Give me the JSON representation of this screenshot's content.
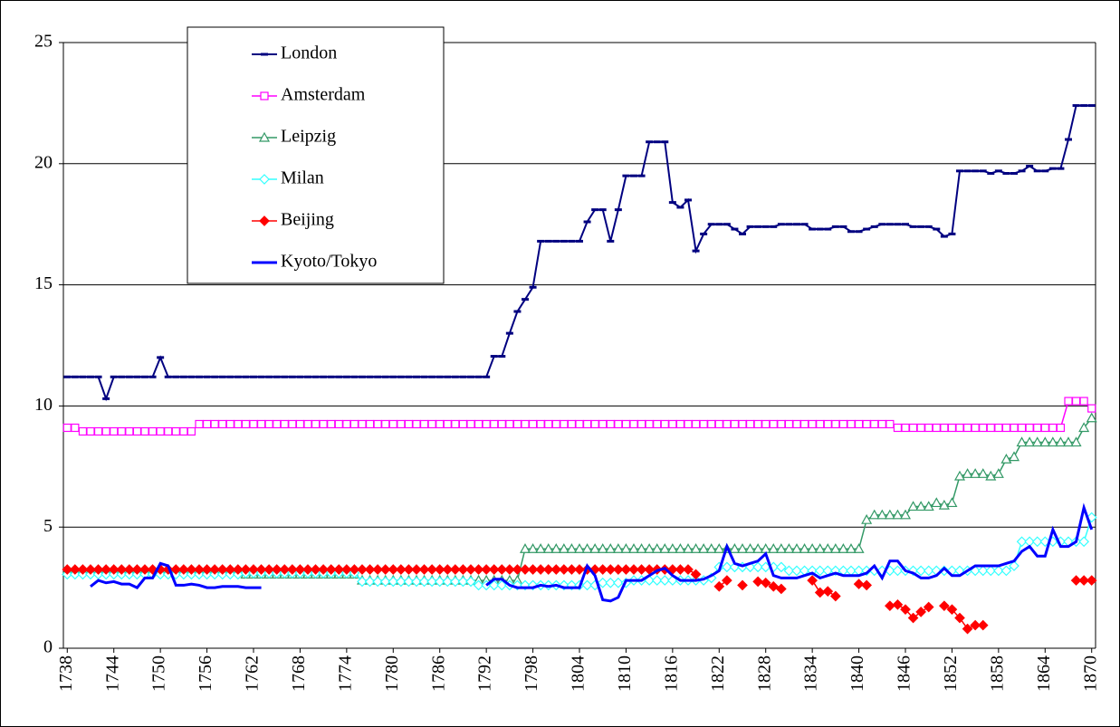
{
  "chart_data": {
    "type": "line",
    "x": [
      1738,
      1739,
      1740,
      1741,
      1742,
      1743,
      1744,
      1745,
      1746,
      1747,
      1748,
      1749,
      1750,
      1751,
      1752,
      1753,
      1754,
      1755,
      1756,
      1757,
      1758,
      1759,
      1760,
      1761,
      1762,
      1763,
      1764,
      1765,
      1766,
      1767,
      1768,
      1769,
      1770,
      1771,
      1772,
      1773,
      1774,
      1775,
      1776,
      1777,
      1778,
      1779,
      1780,
      1781,
      1782,
      1783,
      1784,
      1785,
      1786,
      1787,
      1788,
      1789,
      1790,
      1791,
      1792,
      1793,
      1794,
      1795,
      1796,
      1797,
      1798,
      1799,
      1800,
      1801,
      1802,
      1803,
      1804,
      1805,
      1806,
      1807,
      1808,
      1809,
      1810,
      1811,
      1812,
      1813,
      1814,
      1815,
      1816,
      1817,
      1818,
      1819,
      1820,
      1821,
      1822,
      1823,
      1824,
      1825,
      1826,
      1827,
      1828,
      1829,
      1830,
      1831,
      1832,
      1833,
      1834,
      1835,
      1836,
      1837,
      1838,
      1839,
      1840,
      1841,
      1842,
      1843,
      1844,
      1845,
      1846,
      1847,
      1848,
      1849,
      1850,
      1851,
      1852,
      1853,
      1854,
      1855,
      1856,
      1857,
      1858,
      1859,
      1860,
      1861,
      1862,
      1863,
      1864,
      1865,
      1866,
      1867,
      1868,
      1869,
      1870
    ],
    "xlim": [
      1737.5,
      1870.5
    ],
    "xticks": [
      1738,
      1744,
      1750,
      1756,
      1762,
      1768,
      1774,
      1780,
      1786,
      1792,
      1798,
      1804,
      1810,
      1816,
      1822,
      1828,
      1834,
      1840,
      1846,
      1852,
      1858,
      1864,
      1870
    ],
    "ylim": [
      0,
      25
    ],
    "yticks": [
      0,
      5,
      10,
      15,
      20,
      25
    ],
    "grid": true,
    "legend": "upper left",
    "series": [
      {
        "name": "London",
        "color": "#000080",
        "marker": "dash",
        "width": 2,
        "values": [
          11.2,
          11.2,
          11.2,
          11.2,
          11.2,
          10.3,
          11.2,
          11.2,
          11.2,
          11.2,
          11.2,
          11.2,
          12.0,
          11.2,
          11.2,
          11.2,
          11.2,
          11.2,
          11.2,
          11.2,
          11.2,
          11.2,
          11.2,
          11.2,
          11.2,
          11.2,
          11.2,
          11.2,
          11.2,
          11.2,
          11.2,
          11.2,
          11.2,
          11.2,
          11.2,
          11.2,
          11.2,
          11.2,
          11.2,
          11.2,
          11.2,
          11.2,
          11.2,
          11.2,
          11.2,
          11.2,
          11.2,
          11.2,
          11.2,
          11.2,
          11.2,
          11.2,
          11.2,
          11.2,
          11.2,
          12.05,
          12.05,
          13.0,
          13.9,
          14.4,
          14.9,
          16.8,
          16.8,
          16.8,
          16.8,
          16.8,
          16.8,
          17.6,
          18.1,
          18.1,
          16.8,
          18.1,
          19.5,
          19.5,
          19.5,
          20.9,
          20.9,
          20.9,
          18.4,
          18.2,
          18.5,
          16.4,
          17.1,
          17.5,
          17.5,
          17.5,
          17.3,
          17.1,
          17.4,
          17.4,
          17.4,
          17.4,
          17.5,
          17.5,
          17.5,
          17.5,
          17.3,
          17.3,
          17.3,
          17.4,
          17.4,
          17.2,
          17.2,
          17.3,
          17.4,
          17.5,
          17.5,
          17.5,
          17.5,
          17.4,
          17.4,
          17.4,
          17.3,
          17.0,
          17.1,
          19.7,
          19.7,
          19.7,
          19.7,
          19.6,
          19.7,
          19.6,
          19.6,
          19.7,
          19.9,
          19.7,
          19.7,
          19.8,
          19.8,
          21.0,
          22.4,
          22.4,
          22.4
        ]
      },
      {
        "name": "Amsterdam",
        "color": "#ff00ff",
        "marker": "square",
        "width": 1.5,
        "values": [
          9.1,
          9.1,
          8.95,
          8.95,
          8.95,
          8.95,
          8.95,
          8.95,
          8.95,
          8.95,
          8.95,
          8.95,
          8.95,
          8.95,
          8.95,
          8.95,
          8.95,
          9.25,
          9.25,
          9.25,
          9.25,
          9.25,
          9.25,
          9.25,
          9.25,
          9.25,
          9.25,
          9.25,
          9.25,
          9.25,
          9.25,
          9.25,
          9.25,
          9.25,
          9.25,
          9.25,
          9.25,
          9.25,
          9.25,
          9.25,
          9.25,
          9.25,
          9.25,
          9.25,
          9.25,
          9.25,
          9.25,
          9.25,
          9.25,
          9.25,
          9.25,
          9.25,
          9.25,
          9.25,
          9.25,
          9.25,
          9.25,
          9.25,
          9.25,
          9.25,
          9.25,
          9.25,
          9.25,
          9.25,
          9.25,
          9.25,
          9.25,
          9.25,
          9.25,
          9.25,
          9.25,
          9.25,
          9.25,
          9.25,
          9.25,
          9.25,
          9.25,
          9.25,
          9.25,
          9.25,
          9.25,
          9.25,
          9.25,
          9.25,
          9.25,
          9.25,
          9.25,
          9.25,
          9.25,
          9.25,
          9.25,
          9.25,
          9.25,
          9.25,
          9.25,
          9.25,
          9.25,
          9.25,
          9.25,
          9.25,
          9.25,
          9.25,
          9.25,
          9.25,
          9.25,
          9.25,
          9.25,
          9.1,
          9.1,
          9.1,
          9.1,
          9.1,
          9.1,
          9.1,
          9.1,
          9.1,
          9.1,
          9.1,
          9.1,
          9.1,
          9.1,
          9.1,
          9.1,
          9.1,
          9.1,
          9.1,
          9.1,
          9.1,
          9.1,
          10.2,
          10.2,
          10.2,
          9.9
        ]
      },
      {
        "name": "Leipzig",
        "color": "#339966",
        "marker": "triangle",
        "width": 1.5,
        "values": [
          3.2,
          3.2,
          3.2,
          3.2,
          3.2,
          3.2,
          3.2,
          3.2,
          3.2,
          3.2,
          3.2,
          3.2,
          3.2,
          3.2,
          3.2,
          3.2,
          3.2,
          3.2,
          3.2,
          3.2,
          3.2,
          3.2,
          3.2,
          3.05,
          3.05,
          3.05,
          3.05,
          3.05,
          3.05,
          3.05,
          3.05,
          3.05,
          3.05,
          3.05,
          3.05,
          3.05,
          3.05,
          3.05,
          2.8,
          2.8,
          2.8,
          2.8,
          2.8,
          2.8,
          2.8,
          2.8,
          2.8,
          2.8,
          2.8,
          2.8,
          2.8,
          2.8,
          2.8,
          2.8,
          2.8,
          2.8,
          2.8,
          2.8,
          2.8,
          4.1,
          4.1,
          4.1,
          4.1,
          4.1,
          4.1,
          4.1,
          4.1,
          4.1,
          4.1,
          4.1,
          4.1,
          4.1,
          4.1,
          4.1,
          4.1,
          4.1,
          4.1,
          4.1,
          4.1,
          4.1,
          4.1,
          4.1,
          4.1,
          4.1,
          4.1,
          4.1,
          4.1,
          4.1,
          4.1,
          4.1,
          4.1,
          4.1,
          4.1,
          4.1,
          4.1,
          4.1,
          4.1,
          4.1,
          4.1,
          4.1,
          4.1,
          4.1,
          4.1,
          5.3,
          5.5,
          5.5,
          5.5,
          5.5,
          5.5,
          5.85,
          5.85,
          5.85,
          6.0,
          5.9,
          6.0,
          7.1,
          7.2,
          7.2,
          7.2,
          7.1,
          7.2,
          7.8,
          7.9,
          8.5,
          8.5,
          8.5,
          8.5,
          8.5,
          8.5,
          8.5,
          8.5,
          9.1,
          9.5
        ]
      },
      {
        "name": "Milan",
        "color": "#33ffff",
        "marker": "diamond",
        "width": 1.5,
        "values": [
          3.05,
          3.05,
          3.05,
          3.05,
          3.05,
          3.05,
          3.05,
          3.05,
          3.05,
          3.05,
          3.05,
          3.05,
          3.05,
          3.05,
          3.05,
          3.05,
          3.05,
          3.05,
          3.05,
          3.05,
          3.05,
          3.05,
          3.05,
          3.1,
          3.1,
          3.1,
          3.1,
          3.1,
          3.1,
          3.1,
          3.1,
          3.1,
          3.1,
          3.1,
          3.1,
          3.1,
          3.1,
          3.1,
          2.75,
          2.75,
          2.75,
          2.75,
          2.75,
          2.75,
          2.75,
          2.75,
          2.75,
          2.75,
          2.75,
          2.75,
          2.75,
          2.75,
          2.75,
          2.6,
          2.6,
          2.6,
          2.6,
          2.6,
          2.6,
          2.6,
          2.6,
          2.6,
          2.6,
          2.6,
          2.6,
          2.6,
          2.6,
          2.6,
          2.6,
          2.7,
          2.7,
          2.7,
          2.7,
          2.8,
          2.8,
          2.8,
          2.8,
          2.8,
          2.8,
          2.8,
          2.8,
          2.8,
          2.8,
          2.9,
          3.35,
          3.35,
          3.35,
          3.35,
          3.35,
          3.35,
          3.35,
          3.35,
          3.35,
          3.2,
          3.2,
          3.2,
          3.2,
          3.2,
          3.2,
          3.2,
          3.2,
          3.2,
          3.2,
          3.2,
          3.2,
          3.2,
          3.2,
          3.2,
          3.2,
          3.2,
          3.2,
          3.2,
          3.2,
          3.2,
          3.2,
          3.2,
          3.2,
          3.2,
          3.2,
          3.2,
          3.2,
          3.2,
          3.4,
          4.4,
          4.4,
          4.4,
          4.4,
          4.4,
          4.4,
          4.4,
          4.4,
          4.4,
          5.4
        ]
      },
      {
        "name": "Beijing",
        "color": "#ff0000",
        "marker": "filled-diamond",
        "width": 1.5,
        "values": [
          3.25,
          3.25,
          3.25,
          3.25,
          3.25,
          3.25,
          3.25,
          3.25,
          3.25,
          3.25,
          3.25,
          3.25,
          3.25,
          3.25,
          3.25,
          3.25,
          3.25,
          3.25,
          3.25,
          3.25,
          3.25,
          3.25,
          3.25,
          3.25,
          3.25,
          3.25,
          3.25,
          3.25,
          3.25,
          3.25,
          3.25,
          3.25,
          3.25,
          3.25,
          3.25,
          3.25,
          3.25,
          3.25,
          3.25,
          3.25,
          3.25,
          3.25,
          3.25,
          3.25,
          3.25,
          3.25,
          3.25,
          3.25,
          3.25,
          3.25,
          3.25,
          3.25,
          3.25,
          3.25,
          3.25,
          3.25,
          3.25,
          3.25,
          3.25,
          3.25,
          3.25,
          3.25,
          3.25,
          3.25,
          3.25,
          3.25,
          3.25,
          3.25,
          3.25,
          3.25,
          3.25,
          3.25,
          3.25,
          3.25,
          3.25,
          3.25,
          3.25,
          3.25,
          3.25,
          3.25,
          3.25,
          3.05,
          null,
          null,
          2.55,
          2.8,
          null,
          2.6,
          null,
          2.75,
          2.7,
          2.55,
          2.45,
          null,
          null,
          null,
          2.8,
          2.3,
          2.35,
          2.15,
          null,
          null,
          2.65,
          2.6,
          null,
          null,
          1.75,
          1.8,
          1.6,
          1.25,
          1.5,
          1.7,
          null,
          1.75,
          1.6,
          1.25,
          0.8,
          0.95,
          0.95,
          null,
          null,
          null,
          null,
          null,
          null,
          null,
          null,
          null,
          null,
          null,
          2.8,
          2.8,
          2.8
        ]
      },
      {
        "name": "Kyoto/Tokyo",
        "color": "#0000ff",
        "marker": "none",
        "width": 3,
        "values": [
          null,
          null,
          null,
          2.55,
          2.8,
          2.7,
          2.75,
          2.65,
          2.65,
          2.5,
          2.9,
          2.9,
          3.5,
          3.4,
          2.6,
          2.6,
          2.65,
          2.6,
          2.5,
          2.5,
          2.55,
          2.55,
          2.55,
          2.5,
          2.5,
          2.5,
          null,
          null,
          null,
          null,
          null,
          null,
          null,
          null,
          null,
          null,
          null,
          null,
          null,
          null,
          null,
          null,
          null,
          null,
          null,
          null,
          null,
          null,
          null,
          null,
          null,
          null,
          null,
          null,
          2.6,
          2.85,
          2.85,
          2.6,
          2.5,
          2.5,
          2.5,
          2.6,
          2.55,
          2.6,
          2.5,
          2.5,
          2.5,
          3.4,
          3.0,
          2.0,
          1.95,
          2.1,
          2.8,
          2.8,
          2.8,
          3.0,
          3.2,
          3.3,
          3.0,
          2.8,
          2.8,
          2.8,
          2.85,
          3.0,
          3.2,
          4.2,
          3.5,
          3.4,
          3.5,
          3.6,
          3.9,
          3.0,
          2.9,
          2.9,
          2.9,
          3.0,
          3.1,
          2.9,
          3.0,
          3.1,
          3.0,
          3.0,
          3.0,
          3.1,
          3.4,
          2.9,
          3.6,
          3.6,
          3.2,
          3.1,
          2.9,
          2.9,
          3.0,
          3.3,
          3.0,
          3.0,
          3.2,
          3.4,
          3.4,
          3.4,
          3.4,
          3.5,
          3.6,
          4.0,
          4.2,
          3.8,
          3.8,
          4.9,
          4.2,
          4.2,
          4.4,
          5.8,
          4.9
        ]
      }
    ]
  }
}
